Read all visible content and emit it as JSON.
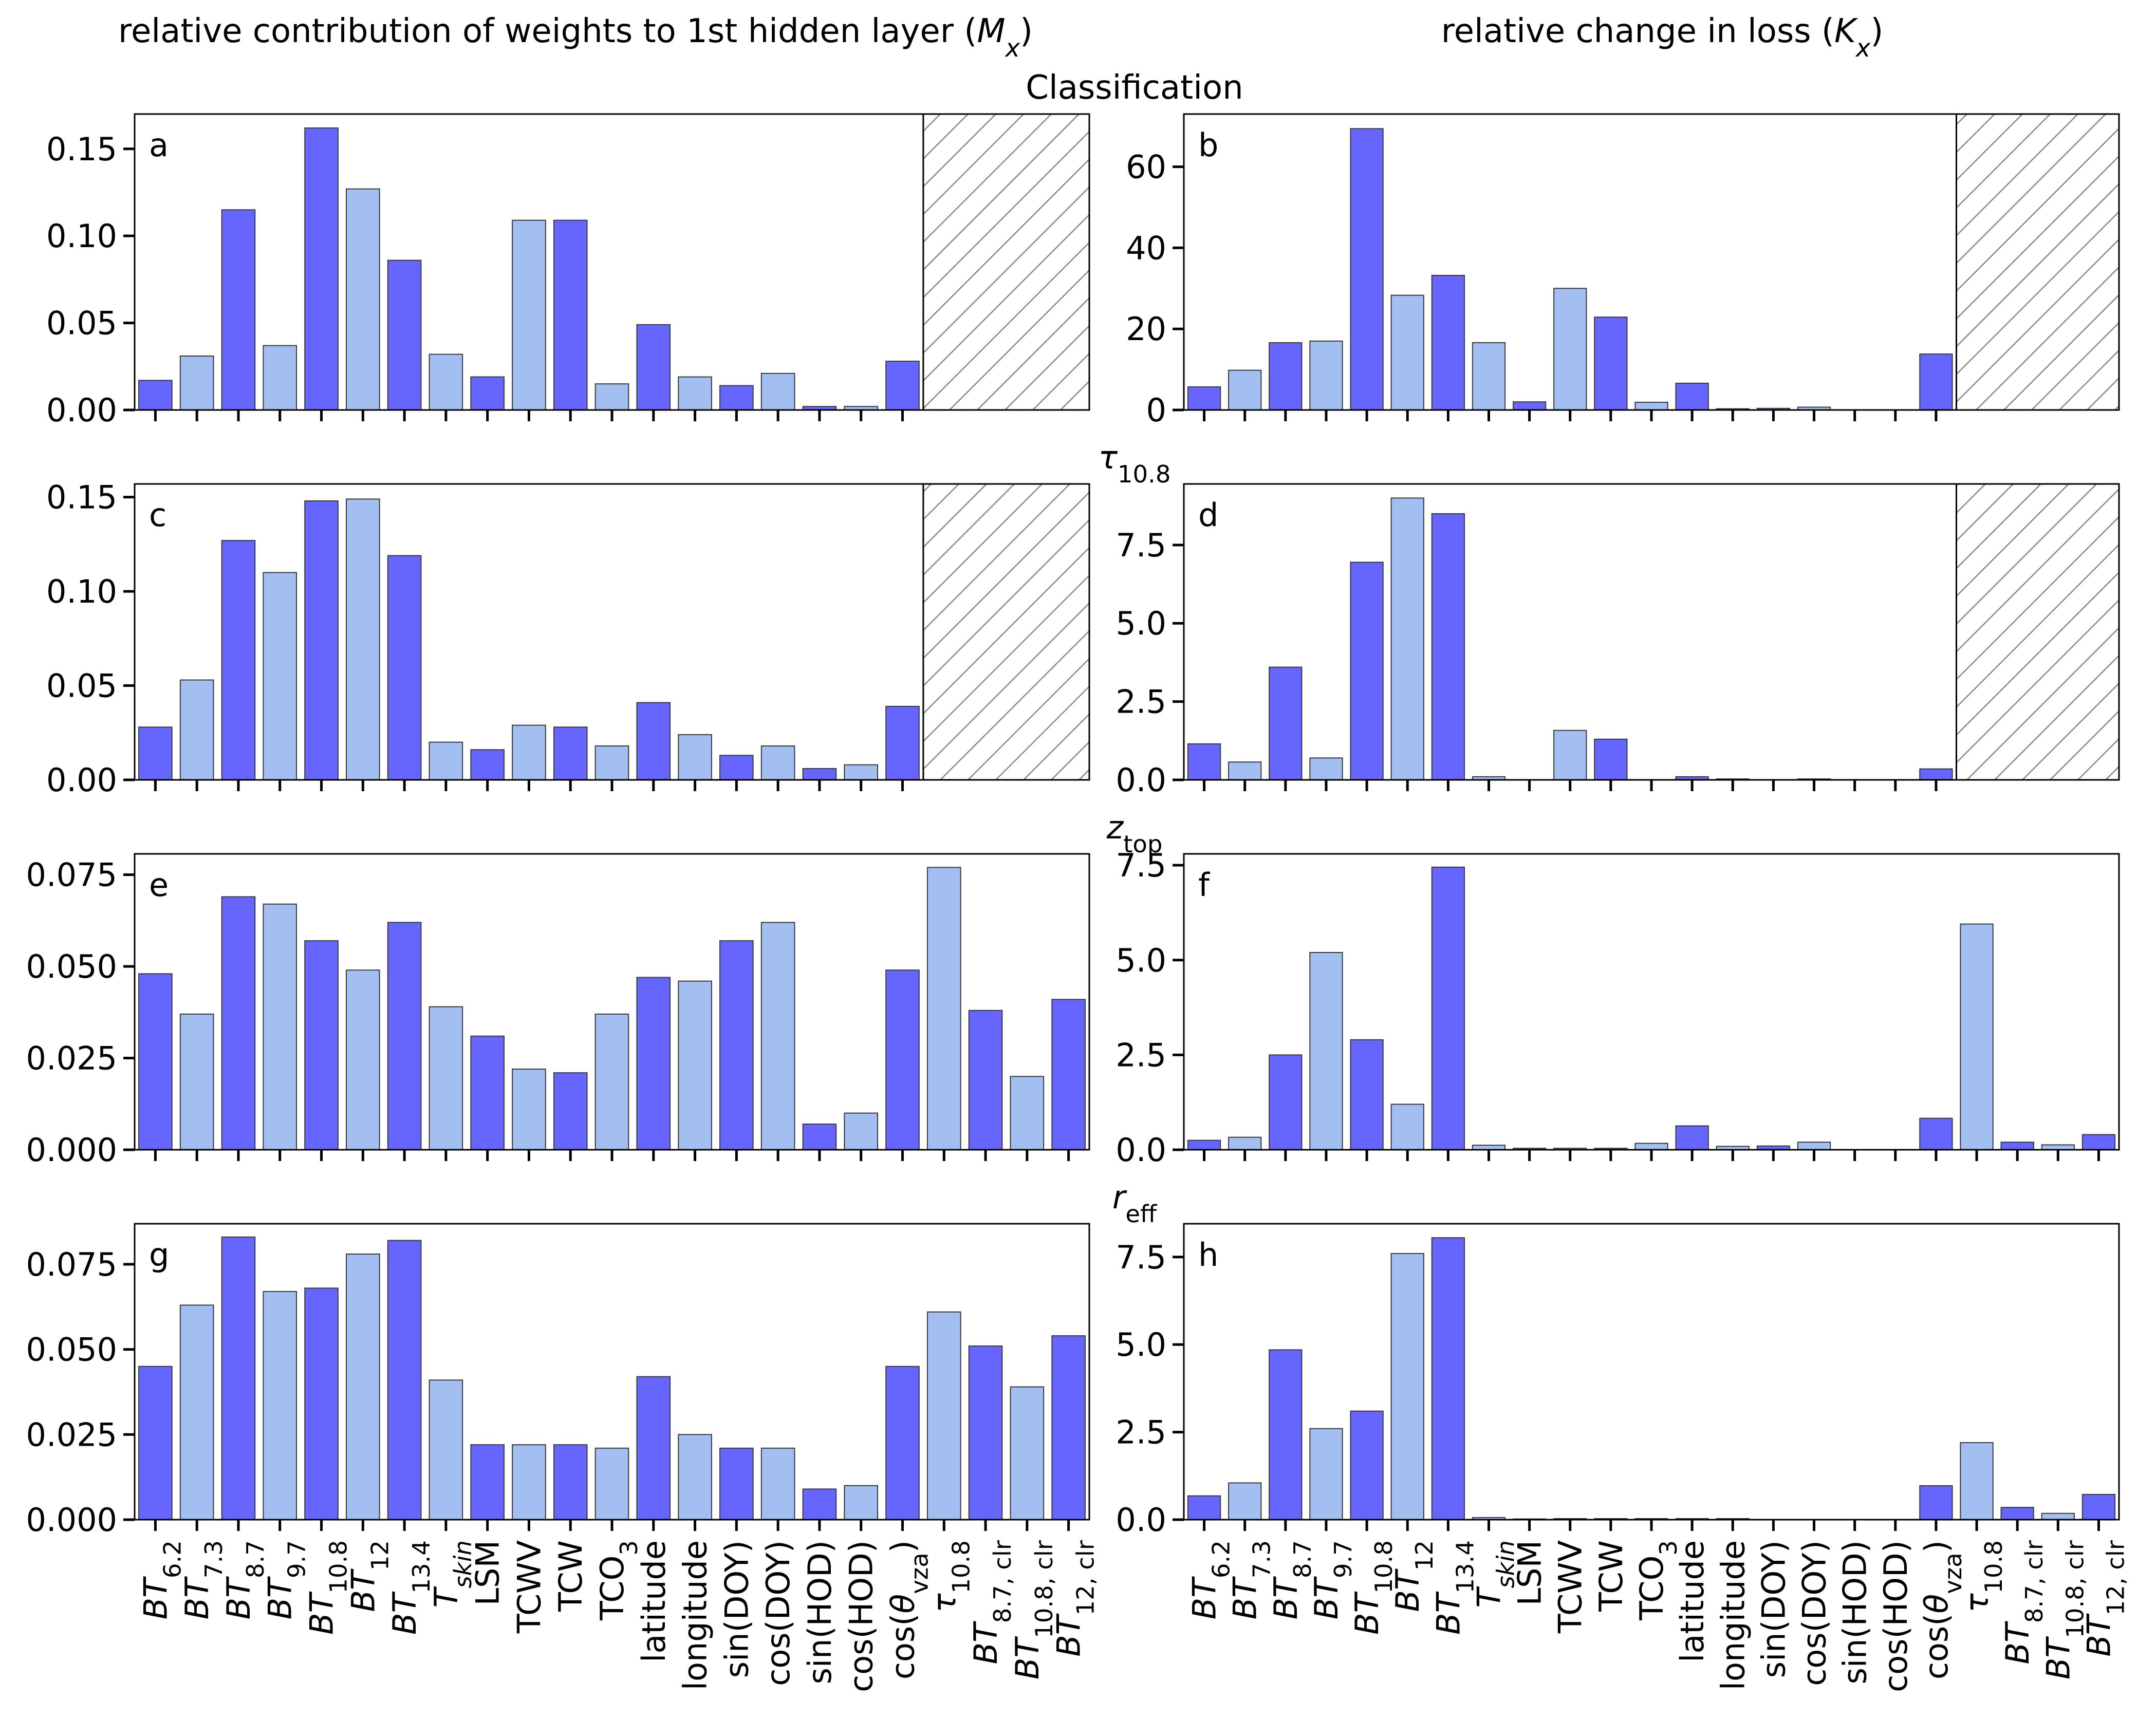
{
  "figure": {
    "col_titles": [
      "relative contribution of weights to 1st hidden layer (M_x)",
      "relative change in loss (K_x)"
    ],
    "row_titles": [
      "Classification",
      "τ_10.8",
      "z_top",
      "r_eff"
    ],
    "colors": {
      "dark": "#6666ff",
      "light": "#a3bff2",
      "edge": "#3a3a3a",
      "hatch": "#888888"
    }
  },
  "chart_data": [
    {
      "type": "bar",
      "panel": "a",
      "title": "Classification",
      "ylabel": "relative contribution of weights to 1st hidden layer (Mx)",
      "categories": [
        "BT6.2",
        "BT7.3",
        "BT8.7",
        "BT9.7",
        "BT10.8",
        "BT12",
        "BT13.4",
        "Tskin",
        "LSM",
        "TCWV",
        "TCW",
        "TCO3",
        "latitude",
        "longitude",
        "sin(DOY)",
        "cos(DOY)",
        "sin(HOD)",
        "cos(HOD)",
        "cos(θvza)"
      ],
      "values": [
        0.017,
        0.031,
        0.115,
        0.037,
        0.162,
        0.127,
        0.086,
        0.032,
        0.019,
        0.109,
        0.109,
        0.015,
        0.049,
        0.019,
        0.014,
        0.021,
        0.002,
        0.002,
        0.028
      ],
      "hatched_categories": [
        "τ10.8",
        "BT8.7, clr",
        "BT10.8, clr",
        "BT12, clr"
      ],
      "ylim": [
        0,
        0.17
      ],
      "yticks": [
        0.0,
        0.05,
        0.1,
        0.15
      ],
      "ytick_labels": [
        "0.00",
        "0.05",
        "0.10",
        "0.15"
      ]
    },
    {
      "type": "bar",
      "panel": "b",
      "title": "Classification",
      "ylabel": "relative change in loss (Kx)",
      "categories": [
        "BT6.2",
        "BT7.3",
        "BT8.7",
        "BT9.7",
        "BT10.8",
        "BT12",
        "BT13.4",
        "Tskin",
        "LSM",
        "TCWV",
        "TCW",
        "TCO3",
        "latitude",
        "longitude",
        "sin(DOY)",
        "cos(DOY)",
        "sin(HOD)",
        "cos(HOD)",
        "cos(θvza)"
      ],
      "values": [
        5.7,
        9.8,
        16.6,
        17.0,
        69.4,
        28.3,
        33.2,
        16.6,
        2.0,
        30.0,
        22.9,
        1.9,
        6.6,
        0.3,
        0.4,
        0.7,
        0.0,
        0.0,
        13.8
      ],
      "hatched_categories": [
        "τ10.8",
        "BT8.7, clr",
        "BT10.8, clr",
        "BT12, clr"
      ],
      "ylim": [
        0,
        73
      ],
      "yticks": [
        0,
        20,
        40,
        60
      ],
      "ytick_labels": [
        "0",
        "20",
        "40",
        "60"
      ]
    },
    {
      "type": "bar",
      "panel": "c",
      "title": "τ10.8",
      "ylabel": "relative contribution of weights to 1st hidden layer (Mx)",
      "categories": [
        "BT6.2",
        "BT7.3",
        "BT8.7",
        "BT9.7",
        "BT10.8",
        "BT12",
        "BT13.4",
        "Tskin",
        "LSM",
        "TCWV",
        "TCW",
        "TCO3",
        "latitude",
        "longitude",
        "sin(DOY)",
        "cos(DOY)",
        "sin(HOD)",
        "cos(HOD)",
        "cos(θvza)"
      ],
      "values": [
        0.028,
        0.053,
        0.127,
        0.11,
        0.148,
        0.149,
        0.119,
        0.02,
        0.016,
        0.029,
        0.028,
        0.018,
        0.041,
        0.024,
        0.013,
        0.018,
        0.006,
        0.008,
        0.039
      ],
      "hatched_categories": [
        "τ10.8",
        "BT8.7, clr",
        "BT10.8, clr",
        "BT12, clr"
      ],
      "ylim": [
        0,
        0.157
      ],
      "yticks": [
        0.0,
        0.05,
        0.1,
        0.15
      ],
      "ytick_labels": [
        "0.00",
        "0.05",
        "0.10",
        "0.15"
      ]
    },
    {
      "type": "bar",
      "panel": "d",
      "title": "τ10.8",
      "ylabel": "relative change in loss (Kx)",
      "categories": [
        "BT6.2",
        "BT7.3",
        "BT8.7",
        "BT9.7",
        "BT10.8",
        "BT12",
        "BT13.4",
        "Tskin",
        "LSM",
        "TCWV",
        "TCW",
        "TCO3",
        "latitude",
        "longitude",
        "sin(DOY)",
        "cos(DOY)",
        "sin(HOD)",
        "cos(HOD)",
        "cos(θvza)"
      ],
      "values": [
        1.15,
        0.57,
        3.6,
        0.7,
        6.95,
        9.0,
        8.5,
        0.1,
        0.0,
        1.58,
        1.3,
        0.0,
        0.1,
        0.03,
        0.0,
        0.03,
        0.0,
        0.0,
        0.35
      ],
      "hatched_categories": [
        "τ10.8",
        "BT8.7, clr",
        "BT10.8, clr",
        "BT12, clr"
      ],
      "ylim": [
        0,
        9.45
      ],
      "yticks": [
        0.0,
        2.5,
        5.0,
        7.5
      ],
      "ytick_labels": [
        "0.0",
        "2.5",
        "5.0",
        "7.5"
      ]
    },
    {
      "type": "bar",
      "panel": "e",
      "title": "z_top",
      "ylabel": "relative contribution of weights to 1st hidden layer (Mx)",
      "categories": [
        "BT6.2",
        "BT7.3",
        "BT8.7",
        "BT9.7",
        "BT10.8",
        "BT12",
        "BT13.4",
        "Tskin",
        "LSM",
        "TCWV",
        "TCW",
        "TCO3",
        "latitude",
        "longitude",
        "sin(DOY)",
        "cos(DOY)",
        "sin(HOD)",
        "cos(HOD)",
        "cos(θvza)",
        "τ10.8",
        "BT8.7, clr",
        "BT10.8, clr",
        "BT12, clr"
      ],
      "values": [
        0.048,
        0.037,
        0.069,
        0.067,
        0.057,
        0.049,
        0.062,
        0.039,
        0.031,
        0.022,
        0.021,
        0.037,
        0.047,
        0.046,
        0.057,
        0.062,
        0.007,
        0.01,
        0.049,
        0.077,
        0.038,
        0.02,
        0.041
      ],
      "ylim": [
        0,
        0.0807
      ],
      "yticks": [
        0.0,
        0.025,
        0.05,
        0.075
      ],
      "ytick_labels": [
        "0.000",
        "0.025",
        "0.050",
        "0.075"
      ]
    },
    {
      "type": "bar",
      "panel": "f",
      "title": "z_top",
      "ylabel": "relative change in loss (Kx)",
      "categories": [
        "BT6.2",
        "BT7.3",
        "BT8.7",
        "BT9.7",
        "BT10.8",
        "BT12",
        "BT13.4",
        "Tskin",
        "LSM",
        "TCWV",
        "TCW",
        "TCO3",
        "latitude",
        "longitude",
        "sin(DOY)",
        "cos(DOY)",
        "sin(HOD)",
        "cos(HOD)",
        "cos(θvza)",
        "τ10.8",
        "BT8.7, clr",
        "BT10.8, clr",
        "BT12, clr"
      ],
      "values": [
        0.25,
        0.33,
        2.5,
        5.2,
        2.9,
        1.2,
        7.45,
        0.12,
        0.04,
        0.04,
        0.04,
        0.17,
        0.63,
        0.09,
        0.1,
        0.2,
        0.0,
        0.0,
        0.83,
        5.95,
        0.2,
        0.13,
        0.4
      ],
      "ylim": [
        0,
        7.8
      ],
      "yticks": [
        0.0,
        2.5,
        5.0,
        7.5
      ],
      "ytick_labels": [
        "0.0",
        "2.5",
        "5.0",
        "7.5"
      ]
    },
    {
      "type": "bar",
      "panel": "g",
      "title": "r_eff",
      "ylabel": "relative contribution of weights to 1st hidden layer (Mx)",
      "categories": [
        "BT6.2",
        "BT7.3",
        "BT8.7",
        "BT9.7",
        "BT10.8",
        "BT12",
        "BT13.4",
        "Tskin",
        "LSM",
        "TCWV",
        "TCW",
        "TCO3",
        "latitude",
        "longitude",
        "sin(DOY)",
        "cos(DOY)",
        "sin(HOD)",
        "cos(HOD)",
        "cos(θvza)",
        "τ10.8",
        "BT8.7, clr",
        "BT10.8, clr",
        "BT12, clr"
      ],
      "values": [
        0.045,
        0.063,
        0.083,
        0.067,
        0.068,
        0.078,
        0.082,
        0.041,
        0.022,
        0.022,
        0.022,
        0.021,
        0.042,
        0.025,
        0.021,
        0.021,
        0.009,
        0.01,
        0.045,
        0.061,
        0.051,
        0.039,
        0.054
      ],
      "ylim": [
        0,
        0.0869
      ],
      "yticks": [
        0.0,
        0.025,
        0.05,
        0.075
      ],
      "ytick_labels": [
        "0.000",
        "0.025",
        "0.050",
        "0.075"
      ]
    },
    {
      "type": "bar",
      "panel": "h",
      "title": "r_eff",
      "ylabel": "relative change in loss (Kx)",
      "categories": [
        "BT6.2",
        "BT7.3",
        "BT8.7",
        "BT9.7",
        "BT10.8",
        "BT12",
        "BT13.4",
        "Tskin",
        "LSM",
        "TCWV",
        "TCW",
        "TCO3",
        "latitude",
        "longitude",
        "sin(DOY)",
        "cos(DOY)",
        "sin(HOD)",
        "cos(HOD)",
        "cos(θvza)",
        "τ10.8",
        "BT8.7, clr",
        "BT10.8, clr",
        "BT12, clr"
      ],
      "values": [
        0.68,
        1.05,
        4.85,
        2.6,
        3.1,
        7.6,
        8.05,
        0.06,
        0.02,
        0.03,
        0.03,
        0.03,
        0.03,
        0.03,
        0.0,
        0.0,
        0.0,
        0.0,
        0.97,
        2.2,
        0.35,
        0.18,
        0.72
      ],
      "ylim": [
        0,
        8.45
      ],
      "yticks": [
        0.0,
        2.5,
        5.0,
        7.5
      ],
      "ytick_labels": [
        "0.0",
        "2.5",
        "5.0",
        "7.5"
      ]
    }
  ]
}
